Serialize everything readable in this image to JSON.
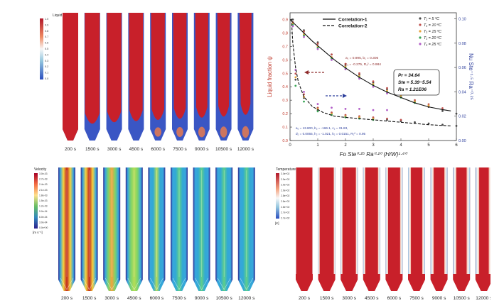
{
  "panels": {
    "liquid": {
      "legend_title": "Liquid Fraction",
      "legend_ticks": [
        "1.0",
        "0.9",
        "0.8",
        "0.7",
        "0.6",
        "0.5",
        "0.4",
        "0.3",
        "0.2",
        "0.1",
        "0.0"
      ],
      "time_labels": [
        "200 s",
        "1500 s",
        "3000 s",
        "4500 s",
        "6000 s",
        "7500 s",
        "9000 s",
        "10500 s",
        "12000 s"
      ],
      "liquid_fraction_visual": [
        1.0,
        0.93,
        0.88,
        0.84,
        0.8,
        0.76,
        0.72,
        0.68,
        0.62
      ],
      "colors": {
        "liquid": "#c8202a",
        "solid": "#3a56c4"
      }
    },
    "velocity": {
      "legend_title": "Velocity",
      "legend_unit": "[m s⁻¹]",
      "legend_ticks": [
        "3.0e-03",
        "2.7e-03",
        "2.4e-03",
        "2.1e-03",
        "1.8e-03",
        "1.5e-03",
        "1.2e-03",
        "9.0e-04",
        "6.0e-04",
        "3.0e-04",
        "0.0e+00"
      ],
      "time_labels": [
        "200 s",
        "1500 s",
        "3000 s",
        "4500 s",
        "6000 s",
        "7500 s",
        "9000 s",
        "10500 s",
        "12000 s"
      ],
      "intensity_visual": [
        1.0,
        0.85,
        0.7,
        0.55,
        0.45,
        0.38,
        0.32,
        0.28,
        0.24
      ]
    },
    "temperature": {
      "legend_title": "Temperature",
      "legend_unit": "[K]",
      "legend_ticks": [
        "3.0e+02",
        "2.9e+02",
        "2.9e+02",
        "2.9e+02",
        "2.8e+02",
        "2.8e+02",
        "2.8e+02",
        "2.7e+02",
        "2.7e+02"
      ],
      "time_labels": [
        "200 s",
        "1500 s",
        "3000 s",
        "4500 s",
        "6000 s",
        "7500 s",
        "9000 s",
        "10500 s",
        "12000 s"
      ],
      "wall_visual": [
        0.05,
        0.18,
        0.22,
        0.26,
        0.3,
        0.34,
        0.38,
        0.4,
        0.44
      ]
    }
  },
  "chart_data": {
    "type": "scatter",
    "xlabel": "Fo Ste⁰·²⁵ Ra⁰·²⁰ (H/W)¹·⁴⁰",
    "ylabel": "Liquid fraction ψ",
    "y2label": "Nu Ste⁻¹·⁵ Ra⁻⁰·²⁵",
    "xlim": [
      0,
      6
    ],
    "ylim": [
      0,
      0.95
    ],
    "y2lim": [
      0,
      0.105
    ],
    "xticks": [
      "0",
      "1",
      "2",
      "3",
      "4",
      "5",
      "6"
    ],
    "yticks": [
      "0.0",
      "0.1",
      "0.2",
      "0.3",
      "0.4",
      "0.5",
      "0.6",
      "0.7",
      "0.8",
      "0.9"
    ],
    "y2ticks": [
      "0.00",
      "0.02",
      "0.04",
      "0.06",
      "0.08",
      "0.10"
    ],
    "legend_lines": [
      {
        "name": "Correlation-1",
        "style": "solid",
        "color": "#111111"
      },
      {
        "name": "Correlation-2",
        "style": "dashed",
        "color": "#111111"
      }
    ],
    "legend_series": [
      {
        "label": "T₁ = 5 ºC",
        "color": "#4a4a4a"
      },
      {
        "label": "T₁ = 10 ºC",
        "color": "#c0504d"
      },
      {
        "label": "T₁ = 15 ºC",
        "color": "#e8a33c"
      },
      {
        "label": "T₁ = 20 ºC",
        "color": "#3aa655"
      },
      {
        "label": "T₁ = 25 ºC",
        "color": "#b25ec8"
      }
    ],
    "annotations": {
      "red_1": "a₁ = 0.995, b₁ = 0.306",
      "red_2": "c₁ = -0.275, R₁² = 0.984",
      "blue_1": "a₂ = 13.800, b₂ = -166.1, c₂ = 31.83,",
      "blue_2": "d₂ = 0.0065, h₂ = -1.021, k₂ = 0.0151, R₂² = 0.95",
      "box_1": "Pr = 34.64",
      "box_2": "Ste = 5.39~5.54",
      "box_3": "Ra = 1.21E06"
    },
    "correlation_1": {
      "x": [
        0.0,
        0.1,
        0.3,
        0.5,
        0.8,
        1.2,
        1.6,
        2.0,
        2.5,
        3.0,
        3.5,
        4.0,
        4.5,
        5.0,
        5.5,
        5.8
      ],
      "y": [
        0.9,
        0.88,
        0.84,
        0.8,
        0.74,
        0.67,
        0.6,
        0.54,
        0.47,
        0.41,
        0.36,
        0.32,
        0.28,
        0.25,
        0.23,
        0.22
      ]
    },
    "correlation_2": {
      "x": [
        0.05,
        0.1,
        0.2,
        0.3,
        0.5,
        0.8,
        1.2,
        1.6,
        2.0,
        2.5,
        3.0,
        3.5,
        4.0,
        5.0,
        5.8
      ],
      "y2": [
        0.1,
        0.08,
        0.06,
        0.048,
        0.036,
        0.028,
        0.023,
        0.02,
        0.019,
        0.018,
        0.017,
        0.016,
        0.015,
        0.013,
        0.012
      ]
    },
    "series_psi": [
      {
        "name": "T₁ = 5 ºC",
        "x": [
          0.1,
          0.5,
          1.0,
          1.5,
          2.0,
          2.5,
          3.0,
          3.5,
          4.0,
          4.5,
          5.0,
          5.5,
          6.0
        ],
        "y": [
          0.9,
          0.82,
          0.73,
          0.64,
          0.56,
          0.49,
          0.43,
          0.38,
          0.33,
          0.29,
          0.25,
          0.22,
          0.2
        ]
      },
      {
        "name": "T₁ = 10 ºC",
        "x": [
          0.1,
          0.5,
          1.0,
          1.5,
          2.0,
          2.5,
          3.0,
          3.5,
          4.0,
          4.5,
          5.0,
          5.5
        ],
        "y": [
          0.88,
          0.81,
          0.72,
          0.64,
          0.57,
          0.5,
          0.44,
          0.39,
          0.34,
          0.3,
          0.27,
          0.24
        ]
      },
      {
        "name": "T₁ = 15 ºC",
        "x": [
          0.1,
          0.5,
          1.0,
          1.5,
          2.0,
          2.5,
          3.0,
          3.5,
          4.0,
          4.5,
          5.0
        ],
        "y": [
          0.87,
          0.79,
          0.7,
          0.62,
          0.55,
          0.48,
          0.42,
          0.37,
          0.33,
          0.29,
          0.26
        ]
      },
      {
        "name": "T₁ = 20 ºC",
        "x": [
          0.1,
          0.5,
          1.0,
          1.5,
          2.0,
          2.5,
          3.0,
          3.5,
          4.0,
          4.5
        ],
        "y": [
          0.86,
          0.78,
          0.69,
          0.61,
          0.54,
          0.47,
          0.41,
          0.36,
          0.32,
          0.28
        ]
      },
      {
        "name": "T₁ = 25 ºC",
        "x": [
          0.1,
          0.5,
          1.0,
          1.5,
          2.0,
          2.5,
          3.0,
          3.5
        ],
        "y": [
          0.85,
          0.77,
          0.68,
          0.6,
          0.53,
          0.46,
          0.4,
          0.35
        ]
      }
    ],
    "series_nu": [
      {
        "name": "T₁ = 5 ºC",
        "x": [
          0.2,
          0.5,
          1.0,
          1.5,
          2.0,
          2.5,
          3.0,
          3.5,
          4.0,
          4.5,
          5.0,
          5.5,
          6.0
        ],
        "y2": [
          0.05,
          0.035,
          0.025,
          0.022,
          0.02,
          0.019,
          0.018,
          0.017,
          0.016,
          0.015,
          0.014,
          0.013,
          0.012
        ]
      },
      {
        "name": "T₁ = 10 ºC",
        "x": [
          0.2,
          0.5,
          1.0,
          1.5,
          2.0,
          2.5,
          3.0,
          3.5,
          4.0
        ],
        "y2": [
          0.055,
          0.038,
          0.027,
          0.023,
          0.021,
          0.02,
          0.019,
          0.018,
          0.017
        ]
      },
      {
        "name": "T₁ = 15 ºC",
        "x": [
          0.2,
          0.5,
          1.0,
          1.5,
          2.0,
          2.5,
          3.0
        ],
        "y2": [
          0.052,
          0.036,
          0.026,
          0.022,
          0.02,
          0.019,
          0.018
        ]
      },
      {
        "name": "T₁ = 20 ºC",
        "x": [
          0.2,
          0.5,
          1.0,
          1.5,
          2.0,
          2.5,
          3.0
        ],
        "y2": [
          0.045,
          0.032,
          0.024,
          0.021,
          0.019,
          0.018,
          0.017
        ]
      },
      {
        "name": "T₁ = 25 ºC",
        "x": [
          0.2,
          0.5,
          1.0,
          1.5,
          2.0,
          2.5,
          3.0,
          3.5
        ],
        "y2": [
          0.058,
          0.04,
          0.03,
          0.027,
          0.026,
          0.026,
          0.025,
          0.025
        ]
      }
    ]
  }
}
